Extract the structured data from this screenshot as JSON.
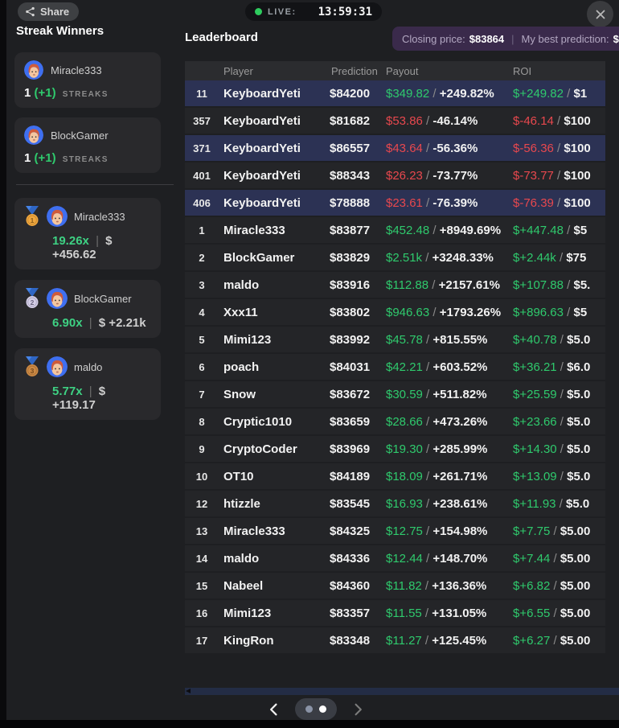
{
  "topbar": {
    "share_label": "Share",
    "live_label": "LIVE:",
    "time": "13:59:31"
  },
  "sidebar": {
    "title": "Streak Winners",
    "streaks": [
      {
        "name": "Miracle333",
        "count": "1",
        "delta": "(+1)",
        "label": "STREAKS"
      },
      {
        "name": "BlockGamer",
        "count": "1",
        "delta": "(+1)",
        "label": "STREAKS"
      }
    ],
    "medals": [
      {
        "place": "1",
        "name": "Miracle333",
        "multiplier": "19.26x",
        "divider": "|",
        "amount": "$ +456.62"
      },
      {
        "place": "2",
        "name": "BlockGamer",
        "multiplier": "6.90x",
        "divider": "|",
        "amount": "$ +2.21k"
      },
      {
        "place": "3",
        "name": "maldo",
        "multiplier": "5.77x",
        "divider": "|",
        "amount": "$ +119.17"
      }
    ]
  },
  "main": {
    "title": "Leaderboard",
    "price_banner": {
      "closing_label": "Closing price:",
      "closing_value": "$83864",
      "divider": "|",
      "best_label": "My best prediction:",
      "best_value": "$"
    },
    "table": {
      "columns": [
        "Player",
        "Prediction",
        "Payout",
        "ROI"
      ],
      "rows": [
        {
          "rank": "11",
          "player": "KeyboardYeti",
          "prediction": "$84200",
          "payout": "$349.82",
          "payout_pct": "+249.82%",
          "roi": "$+249.82",
          "roi_stake": "$1",
          "trend": "up",
          "highlight": true
        },
        {
          "rank": "357",
          "player": "KeyboardYeti",
          "prediction": "$81682",
          "payout": "$53.86",
          "payout_pct": "-46.14%",
          "roi": "$-46.14",
          "roi_stake": "$100",
          "trend": "down",
          "highlight": false
        },
        {
          "rank": "371",
          "player": "KeyboardYeti",
          "prediction": "$86557",
          "payout": "$43.64",
          "payout_pct": "-56.36%",
          "roi": "$-56.36",
          "roi_stake": "$100",
          "trend": "down",
          "highlight": true
        },
        {
          "rank": "401",
          "player": "KeyboardYeti",
          "prediction": "$88343",
          "payout": "$26.23",
          "payout_pct": "-73.77%",
          "roi": "$-73.77",
          "roi_stake": "$100",
          "trend": "down",
          "highlight": false
        },
        {
          "rank": "406",
          "player": "KeyboardYeti",
          "prediction": "$78888",
          "payout": "$23.61",
          "payout_pct": "-76.39%",
          "roi": "$-76.39",
          "roi_stake": "$100",
          "trend": "down",
          "highlight": true
        },
        {
          "rank": "1",
          "player": "Miracle333",
          "prediction": "$83877",
          "payout": "$452.48",
          "payout_pct": "+8949.69%",
          "roi": "$+447.48",
          "roi_stake": "$5",
          "trend": "up",
          "highlight": false
        },
        {
          "rank": "2",
          "player": "BlockGamer",
          "prediction": "$83829",
          "payout": "$2.51k",
          "payout_pct": "+3248.33%",
          "roi": "$+2.44k",
          "roi_stake": "$75",
          "trend": "up",
          "highlight": false
        },
        {
          "rank": "3",
          "player": "maldo",
          "prediction": "$83916",
          "payout": "$112.88",
          "payout_pct": "+2157.61%",
          "roi": "$+107.88",
          "roi_stake": "$5.",
          "trend": "up",
          "highlight": false
        },
        {
          "rank": "4",
          "player": "Xxx11",
          "prediction": "$83802",
          "payout": "$946.63",
          "payout_pct": "+1793.26%",
          "roi": "$+896.63",
          "roi_stake": "$5",
          "trend": "up",
          "highlight": false
        },
        {
          "rank": "5",
          "player": "Mimi123",
          "prediction": "$83992",
          "payout": "$45.78",
          "payout_pct": "+815.55%",
          "roi": "$+40.78",
          "roi_stake": "$5.0",
          "trend": "up",
          "highlight": false
        },
        {
          "rank": "6",
          "player": "poach",
          "prediction": "$84031",
          "payout": "$42.21",
          "payout_pct": "+603.52%",
          "roi": "$+36.21",
          "roi_stake": "$6.0",
          "trend": "up",
          "highlight": false
        },
        {
          "rank": "7",
          "player": "Snow",
          "prediction": "$83672",
          "payout": "$30.59",
          "payout_pct": "+511.82%",
          "roi": "$+25.59",
          "roi_stake": "$5.0",
          "trend": "up",
          "highlight": false
        },
        {
          "rank": "8",
          "player": "Cryptic1010",
          "prediction": "$83659",
          "payout": "$28.66",
          "payout_pct": "+473.26%",
          "roi": "$+23.66",
          "roi_stake": "$5.0",
          "trend": "up",
          "highlight": false
        },
        {
          "rank": "9",
          "player": "CryptoCoder",
          "prediction": "$83969",
          "payout": "$19.30",
          "payout_pct": "+285.99%",
          "roi": "$+14.30",
          "roi_stake": "$5.0",
          "trend": "up",
          "highlight": false
        },
        {
          "rank": "10",
          "player": "OT10",
          "prediction": "$84189",
          "payout": "$18.09",
          "payout_pct": "+261.71%",
          "roi": "$+13.09",
          "roi_stake": "$5.0",
          "trend": "up",
          "highlight": false
        },
        {
          "rank": "12",
          "player": "htizzle",
          "prediction": "$83545",
          "payout": "$16.93",
          "payout_pct": "+238.61%",
          "roi": "$+11.93",
          "roi_stake": "$5.0",
          "trend": "up",
          "highlight": false
        },
        {
          "rank": "13",
          "player": "Miracle333",
          "prediction": "$84325",
          "payout": "$12.75",
          "payout_pct": "+154.98%",
          "roi": "$+7.75",
          "roi_stake": "$5.00",
          "trend": "up",
          "highlight": false
        },
        {
          "rank": "14",
          "player": "maldo",
          "prediction": "$84336",
          "payout": "$12.44",
          "payout_pct": "+148.70%",
          "roi": "$+7.44",
          "roi_stake": "$5.00",
          "trend": "up",
          "highlight": false
        },
        {
          "rank": "15",
          "player": "Nabeel",
          "prediction": "$84360",
          "payout": "$11.82",
          "payout_pct": "+136.36%",
          "roi": "$+6.82",
          "roi_stake": "$5.00",
          "trend": "up",
          "highlight": false
        },
        {
          "rank": "16",
          "player": "Mimi123",
          "prediction": "$83357",
          "payout": "$11.55",
          "payout_pct": "+131.05%",
          "roi": "$+6.55",
          "roi_stake": "$5.00",
          "trend": "up",
          "highlight": false
        },
        {
          "rank": "17",
          "player": "KingRon",
          "prediction": "$83348",
          "payout": "$11.27",
          "payout_pct": "+125.45%",
          "roi": "$+6.27",
          "roi_stake": "$5.00",
          "trend": "up",
          "highlight": false
        }
      ]
    },
    "pagination": {
      "dots": [
        "inactive",
        "active"
      ]
    }
  },
  "colors": {
    "accent_green": "#2fca6d",
    "accent_red": "#e8484e",
    "highlight_row": "#2c3254",
    "badge_purple": "#3a2a4b",
    "live_green": "#2ecc5e",
    "avatar_blue": "#3f6ff0",
    "avatar_skin": "#f3c6a0",
    "avatar_hair": "#cf5b3a",
    "ribbon_blue": "#4584e8",
    "medal_gold": "#f0a73e",
    "medal_silver": "#d5cfe8",
    "medal_bronze": "#cd8a45"
  }
}
